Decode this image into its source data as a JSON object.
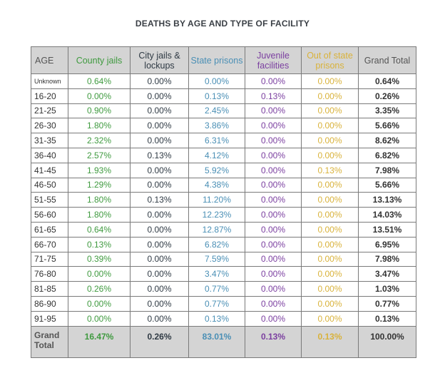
{
  "chart_data": {
    "type": "table",
    "title": "DEATHS BY AGE AND TYPE OF FACILITY",
    "columns": [
      {
        "key": "age",
        "label": "AGE"
      },
      {
        "key": "county",
        "label": "County jails"
      },
      {
        "key": "city",
        "label": "City jails & lockups"
      },
      {
        "key": "state",
        "label": "State prisons"
      },
      {
        "key": "juvenile",
        "label": "Juvenile facilities"
      },
      {
        "key": "out_of_state",
        "label": "Out of state prisons"
      },
      {
        "key": "grand",
        "label": "Grand Total"
      }
    ],
    "colors": {
      "county": "#3f9a3f",
      "city": "#2f3a44",
      "state": "#4a8fb5",
      "juvenile": "#7b3fa0",
      "out_of_state": "#d9b23a",
      "header_bg": "#d4d4d4"
    },
    "rows": [
      [
        "Unknown",
        "0.64%",
        "0.00%",
        "0.00%",
        "0.00%",
        "0.00%",
        "0.64%"
      ],
      [
        "16-20",
        "0.00%",
        "0.00%",
        "0.13%",
        "0.13%",
        "0.00%",
        "0.26%"
      ],
      [
        "21-25",
        "0.90%",
        "0.00%",
        "2.45%",
        "0.00%",
        "0.00%",
        "3.35%"
      ],
      [
        "26-30",
        "1.80%",
        "0.00%",
        "3.86%",
        "0.00%",
        "0.00%",
        "5.66%"
      ],
      [
        "31-35",
        "2.32%",
        "0.00%",
        "6.31%",
        "0.00%",
        "0.00%",
        "8.62%"
      ],
      [
        "36-40",
        "2.57%",
        "0.13%",
        "4.12%",
        "0.00%",
        "0.00%",
        "6.82%"
      ],
      [
        "41-45",
        "1.93%",
        "0.00%",
        "5.92%",
        "0.00%",
        "0.13%",
        "7.98%"
      ],
      [
        "46-50",
        "1.29%",
        "0.00%",
        "4.38%",
        "0.00%",
        "0.00%",
        "5.66%"
      ],
      [
        "51-55",
        "1.80%",
        "0.13%",
        "11.20%",
        "0.00%",
        "0.00%",
        "13.13%"
      ],
      [
        "56-60",
        "1.80%",
        "0.00%",
        "12.23%",
        "0.00%",
        "0.00%",
        "14.03%"
      ],
      [
        "61-65",
        "0.64%",
        "0.00%",
        "12.87%",
        "0.00%",
        "0.00%",
        "13.51%"
      ],
      [
        "66-70",
        "0.13%",
        "0.00%",
        "6.82%",
        "0.00%",
        "0.00%",
        "6.95%"
      ],
      [
        "71-75",
        "0.39%",
        "0.00%",
        "7.59%",
        "0.00%",
        "0.00%",
        "7.98%"
      ],
      [
        "76-80",
        "0.00%",
        "0.00%",
        "3.47%",
        "0.00%",
        "0.00%",
        "3.47%"
      ],
      [
        "81-85",
        "0.26%",
        "0.00%",
        "0.77%",
        "0.00%",
        "0.00%",
        "1.03%"
      ],
      [
        "86-90",
        "0.00%",
        "0.00%",
        "0.77%",
        "0.00%",
        "0.00%",
        "0.77%"
      ],
      [
        "91-95",
        "0.00%",
        "0.00%",
        "0.13%",
        "0.00%",
        "0.00%",
        "0.13%"
      ]
    ],
    "total_row": [
      "Grand Total",
      "16.47%",
      "0.26%",
      "83.01%",
      "0.13%",
      "0.13%",
      "100.00%"
    ]
  }
}
